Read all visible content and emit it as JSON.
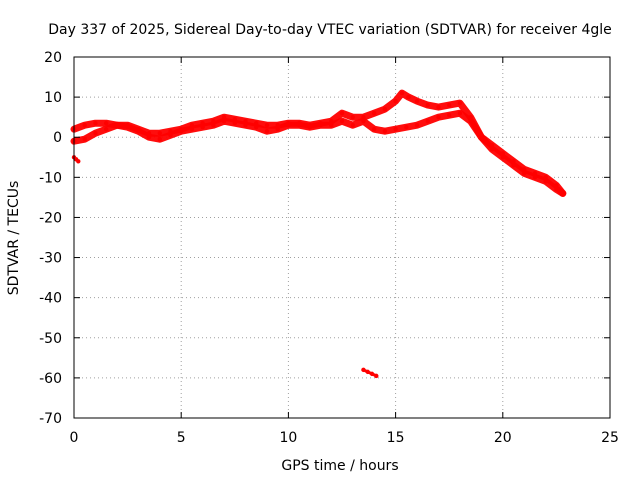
{
  "chart_data": {
    "type": "scatter",
    "title": "Day 337 of 2025, Sidereal Day-to-day VTEC variation (SDTVAR) for receiver 4gle",
    "xlabel": "GPS time / hours",
    "ylabel": "SDTVAR / TECUs",
    "xlim": [
      0,
      25
    ],
    "ylim": [
      -70,
      20
    ],
    "xticks": [
      0,
      5,
      10,
      15,
      20,
      25
    ],
    "yticks": [
      -70,
      -60,
      -50,
      -40,
      -30,
      -20,
      -10,
      0,
      10,
      20
    ],
    "grid": true,
    "series_color": "#ff0000",
    "series": [
      {
        "name": "upper-band",
        "x": [
          0.0,
          0.5,
          1.0,
          1.5,
          2.0,
          2.5,
          3.0,
          3.5,
          4.0,
          4.5,
          5.0,
          5.5,
          6.0,
          6.5,
          7.0,
          7.5,
          8.0,
          8.5,
          9.0,
          9.5,
          10.0,
          10.5,
          11.0,
          11.5,
          12.0,
          12.5,
          13.0,
          13.5,
          14.0,
          14.5,
          15.0,
          15.3,
          15.6,
          16.0,
          16.5,
          17.0,
          17.5,
          18.0,
          18.5,
          19.0,
          19.5,
          20.0,
          20.5,
          21.0,
          21.5,
          22.0,
          22.5,
          22.8
        ],
        "y": [
          2,
          3,
          3.5,
          3.5,
          3,
          3,
          2,
          1,
          1,
          1.5,
          2,
          3,
          3.5,
          4,
          5,
          4.5,
          4,
          3.5,
          3,
          3,
          3.5,
          3.5,
          3,
          3.5,
          4,
          6,
          5,
          5,
          6,
          7,
          9,
          11,
          10,
          9,
          8,
          7.5,
          8,
          8.5,
          5,
          0,
          -3,
          -5,
          -7,
          -9,
          -10,
          -11,
          -13,
          -14
        ]
      },
      {
        "name": "lower-band",
        "x": [
          0.0,
          0.5,
          1.0,
          1.5,
          2.0,
          2.5,
          3.0,
          3.5,
          4.0,
          4.5,
          5.0,
          5.5,
          6.0,
          6.5,
          7.0,
          7.5,
          8.0,
          8.5,
          9.0,
          9.5,
          10.0,
          10.5,
          11.0,
          11.5,
          12.0,
          12.5,
          13.0,
          13.5,
          14.0,
          14.5,
          15.0,
          15.5,
          16.0,
          16.5,
          17.0,
          17.5,
          18.0,
          18.5,
          19.0,
          19.5,
          20.0,
          20.5,
          21.0,
          21.5,
          22.0,
          22.5,
          22.8
        ],
        "y": [
          -1,
          -0.5,
          1,
          2,
          3,
          2.5,
          1.5,
          0,
          -0.5,
          0.5,
          1.5,
          2,
          2.5,
          3,
          4,
          3.5,
          3,
          2.5,
          1.5,
          2,
          3,
          3,
          2.5,
          3,
          3,
          4,
          3,
          4,
          2,
          1.5,
          2,
          2.5,
          3,
          4,
          5,
          5.5,
          6,
          4,
          0,
          -2,
          -4,
          -6,
          -8,
          -9,
          -10,
          -12,
          -14
        ]
      },
      {
        "name": "outlier-near-zero",
        "x": [
          0.0,
          0.1,
          0.2
        ],
        "y": [
          -5,
          -5.5,
          -6
        ]
      },
      {
        "name": "outlier-cluster",
        "x": [
          13.5,
          13.7,
          13.9,
          14.1
        ],
        "y": [
          -58,
          -58.5,
          -59,
          -59.5
        ]
      }
    ]
  }
}
